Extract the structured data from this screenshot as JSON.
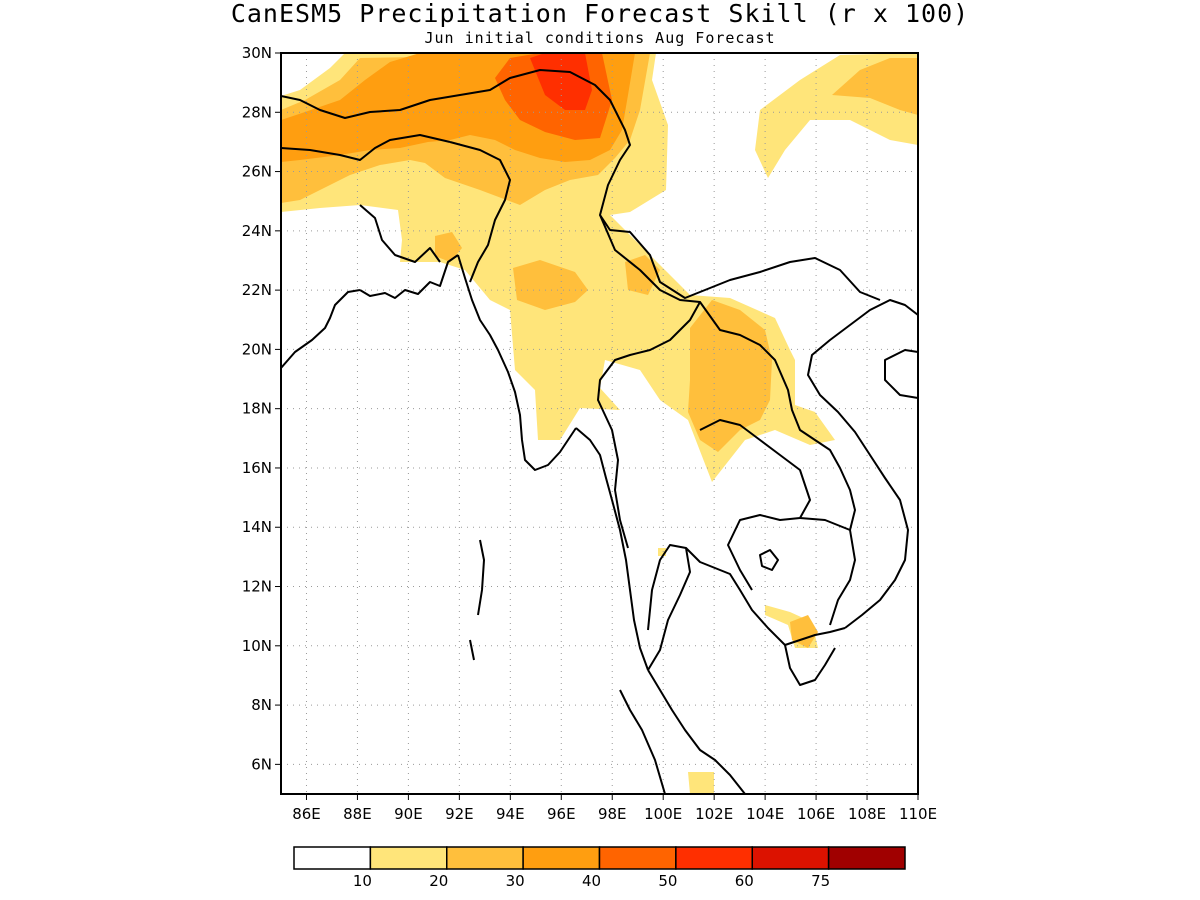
{
  "title": "CanESM5 Precipitation Forecast Skill (r x 100)",
  "subtitle": "Jun initial conditions  Aug Forecast",
  "map": {
    "lon_range": [
      85,
      110
    ],
    "lat_range": [
      5,
      30
    ],
    "lat_ticks": [
      "30N",
      "28N",
      "26N",
      "24N",
      "22N",
      "20N",
      "18N",
      "16N",
      "14N",
      "12N",
      "10N",
      "8N",
      "6N"
    ],
    "lon_ticks": [
      "86E",
      "88E",
      "90E",
      "92E",
      "94E",
      "96E",
      "98E",
      "100E",
      "102E",
      "104E",
      "106E",
      "108E",
      "110E"
    ],
    "grid": true
  },
  "colorbar": {
    "colors": [
      "#ffffff",
      "#ffe57a",
      "#ffbf3c",
      "#ff9e10",
      "#ff6400",
      "#ff2f00",
      "#dc1200",
      "#a00000"
    ],
    "labels": [
      "10",
      "20",
      "30",
      "40",
      "50",
      "60",
      "75"
    ]
  }
}
